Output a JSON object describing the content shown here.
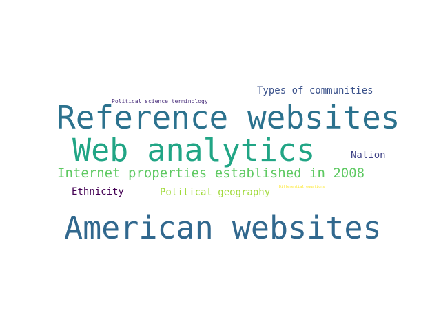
{
  "words": [
    {
      "text": "Political science terminology",
      "color": "#472c7a"
    },
    {
      "text": "Types of communities",
      "color": "#3b528b"
    },
    {
      "text": "Reference websites",
      "color": "#2c728e"
    },
    {
      "text": "Web analytics",
      "color": "#21a585"
    },
    {
      "text": "Nation",
      "color": "#414487"
    },
    {
      "text": "Internet properties established in 2008",
      "color": "#5ec962"
    },
    {
      "text": "Ethnicity",
      "color": "#440154"
    },
    {
      "text": "Political geography",
      "color": "#a0da39"
    },
    {
      "text": "Differential equations",
      "color": "#fde725"
    },
    {
      "text": "American websites",
      "color": "#31688e"
    }
  ]
}
